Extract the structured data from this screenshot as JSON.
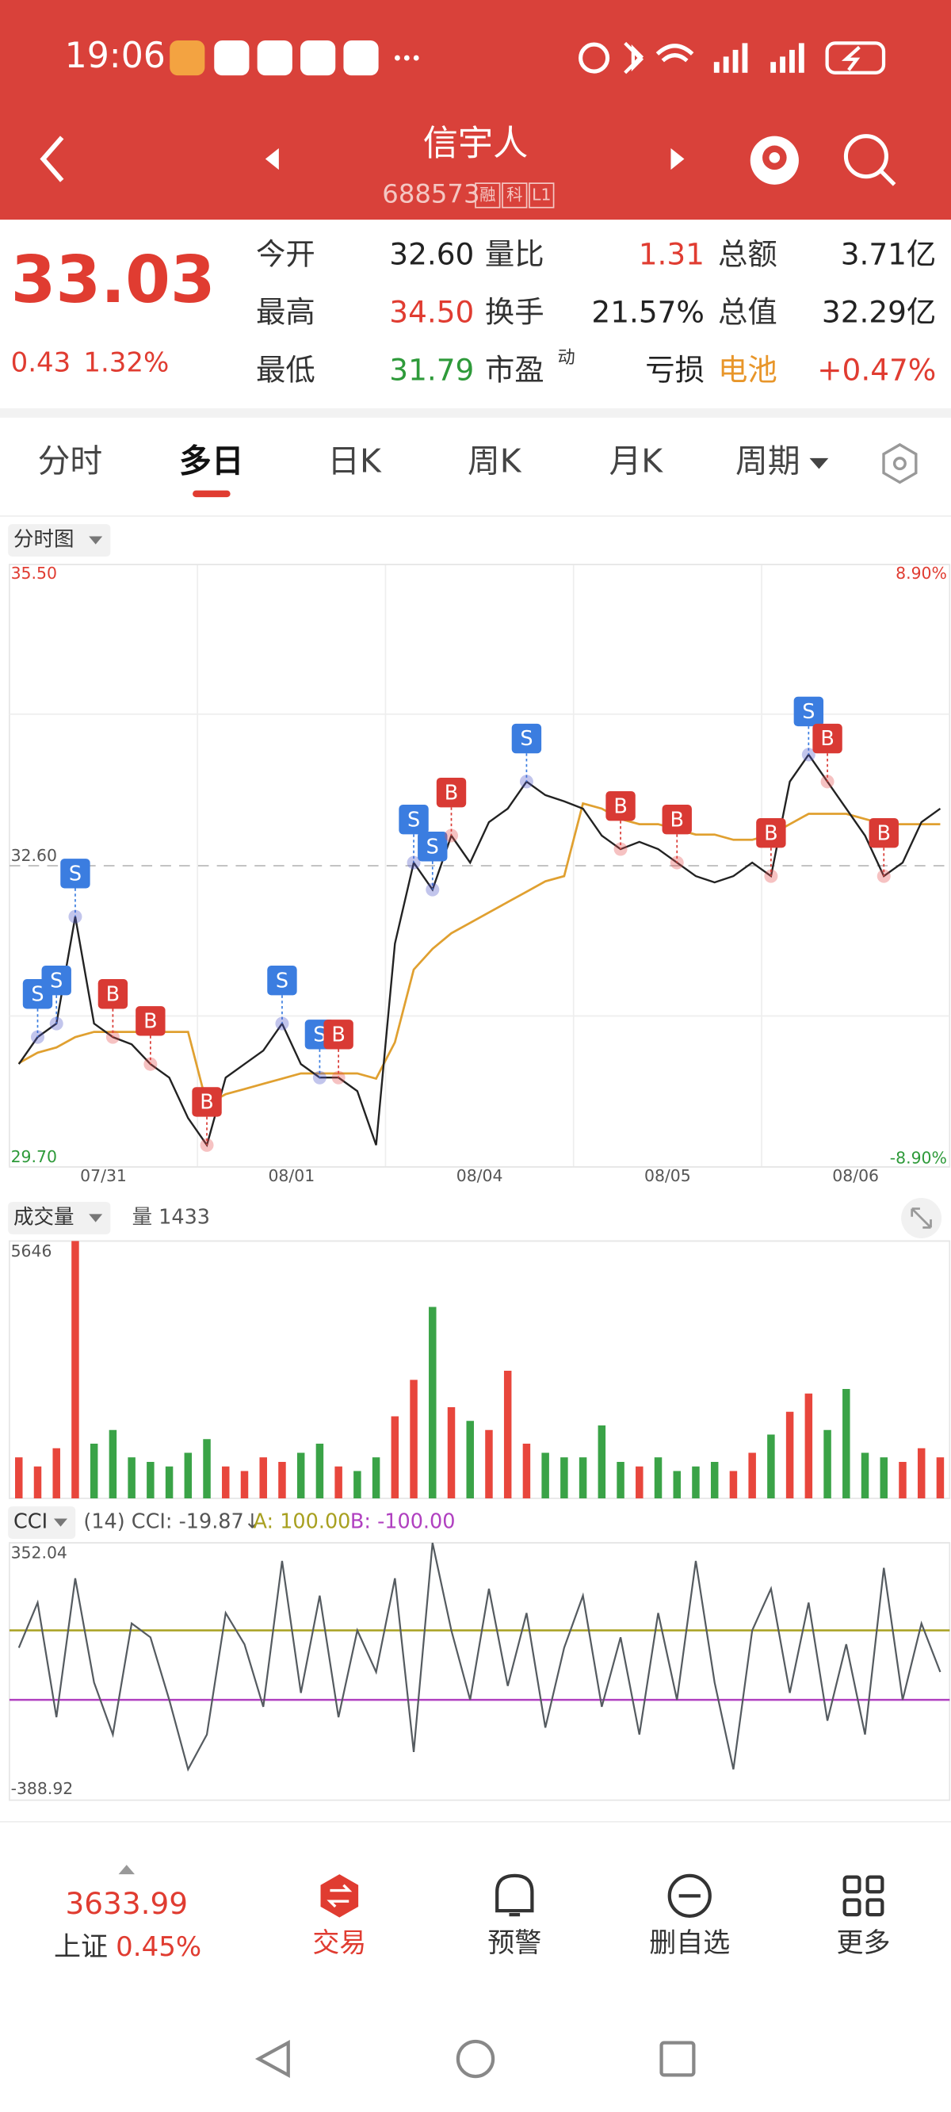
{
  "status_bar": {
    "time": "19:06"
  },
  "header": {
    "title": "信宇人",
    "code": "688573",
    "badges": [
      "融",
      "科",
      "L1"
    ]
  },
  "quote": {
    "price": "33.03",
    "change": "0.43",
    "change_pct": "1.32%",
    "rows": [
      [
        {
          "label": "今开",
          "value": "32.60",
          "color": "#222222"
        },
        {
          "label": "量比",
          "value": "1.31",
          "color": "#e03c31"
        },
        {
          "label": "总额",
          "value": "3.71亿",
          "color": "#222222"
        }
      ],
      [
        {
          "label": "最高",
          "value": "34.50",
          "color": "#e03c31"
        },
        {
          "label": "换手",
          "value": "21.57%",
          "color": "#222222"
        },
        {
          "label": "总值",
          "value": "32.29亿",
          "color": "#222222"
        }
      ],
      [
        {
          "label": "最低",
          "value": "31.79",
          "color": "#2e9a3a"
        },
        {
          "label": "市盈",
          "sup": "动",
          "value": "亏损",
          "color": "#222222"
        },
        {
          "label": "电池",
          "label_color": "#e8962a",
          "value": "+0.47%",
          "color": "#e03c31"
        }
      ]
    ]
  },
  "tabs": [
    "分时",
    "多日",
    "日K",
    "周K",
    "月K",
    "周期"
  ],
  "active_tab": 1,
  "chart_data": [
    {
      "type": "line",
      "label": "分时图",
      "days": [
        "07/31",
        "08/01",
        "08/04",
        "08/05",
        "08/06"
      ],
      "ylim": [
        29.7,
        35.5
      ],
      "yticks": [
        {
          "value": 35.5,
          "label": "35.50"
        },
        {
          "value": 32.6,
          "label": "32.60"
        },
        {
          "value": 29.7,
          "label": "29.70"
        }
      ],
      "pct_labels": [
        "8.90%",
        "-8.90%"
      ],
      "series": [
        {
          "color": "#222222",
          "values": [
            30.69,
            30.95,
            31.08,
            32.11,
            31.08,
            30.95,
            30.88,
            30.69,
            30.56,
            30.17,
            29.91,
            30.56,
            30.69,
            30.82,
            31.08,
            30.69,
            30.56,
            30.56,
            30.43,
            29.91,
            31.85,
            32.63,
            32.37,
            32.89,
            32.63,
            33.02,
            33.15,
            33.41,
            33.28,
            33.22,
            33.15,
            32.89,
            32.76,
            32.83,
            32.76,
            32.63,
            32.5,
            32.44,
            32.5,
            32.63,
            32.5,
            33.41,
            33.67,
            33.41,
            33.15,
            32.89,
            32.5,
            32.63,
            33.02,
            33.15
          ]
        },
        {
          "color": "#e0a030",
          "values": [
            30.7,
            30.8,
            30.85,
            30.95,
            31.0,
            31.0,
            31.0,
            31.0,
            31.0,
            31.0,
            30.3,
            30.4,
            30.45,
            30.5,
            30.55,
            30.6,
            30.6,
            30.6,
            30.6,
            30.55,
            30.9,
            31.6,
            31.8,
            31.95,
            32.05,
            32.15,
            32.25,
            32.35,
            32.45,
            32.5,
            33.2,
            33.15,
            33.05,
            33.0,
            33.0,
            32.95,
            32.9,
            32.9,
            32.85,
            32.85,
            32.9,
            33.0,
            33.1,
            33.1,
            33.1,
            33.05,
            33.0,
            33.0,
            33.0,
            33.0
          ]
        }
      ],
      "markers": [
        {
          "label": "S",
          "at": 1,
          "price": 30.95
        },
        {
          "label": "S",
          "at": 2,
          "price": 31.08
        },
        {
          "label": "S",
          "at": 3,
          "price": 32.11
        },
        {
          "label": "B",
          "at": 5,
          "price": 30.95
        },
        {
          "label": "B",
          "at": 7,
          "price": 30.69
        },
        {
          "label": "B",
          "at": 10,
          "price": 29.91
        },
        {
          "label": "S",
          "at": 14,
          "price": 31.08
        },
        {
          "label": "S",
          "at": 16,
          "price": 30.56
        },
        {
          "label": "B",
          "at": 17,
          "price": 30.56
        },
        {
          "label": "S",
          "at": 21,
          "price": 32.63
        },
        {
          "label": "S",
          "at": 22,
          "price": 32.37
        },
        {
          "label": "B",
          "at": 23,
          "price": 32.89
        },
        {
          "label": "S",
          "at": 27,
          "price": 33.41
        },
        {
          "label": "B",
          "at": 32,
          "price": 32.76
        },
        {
          "label": "B",
          "at": 35,
          "price": 32.63
        },
        {
          "label": "B",
          "at": 40,
          "price": 32.5
        },
        {
          "label": "S",
          "at": 42,
          "price": 33.67
        },
        {
          "label": "B",
          "at": 43,
          "price": 33.41
        },
        {
          "label": "B",
          "at": 46,
          "price": 32.5
        }
      ]
    },
    {
      "type": "bar",
      "label": "成交量",
      "readout": "量 1433",
      "ylim": [
        0,
        5646
      ],
      "yticks": [
        5646
      ],
      "values": [
        900,
        700,
        1100,
        5646,
        1200,
        1500,
        900,
        800,
        700,
        1000,
        1300,
        700,
        600,
        900,
        800,
        1000,
        1200,
        700,
        600,
        900,
        1800,
        2600,
        4200,
        2000,
        1700,
        1500,
        2800,
        1200,
        1000,
        900,
        900,
        1600,
        800,
        700,
        900,
        600,
        700,
        800,
        600,
        1000,
        1400,
        1900,
        2300,
        1500,
        2400,
        1000,
        900,
        800,
        1100,
        900
      ]
    },
    {
      "type": "line",
      "label": "CCI",
      "readout": "(14) CCI: -19.87↓",
      "bands": [
        {
          "label": "A: 100.00",
          "value": 100,
          "color": "#a8a020"
        },
        {
          "label": "B: -100.00",
          "value": -100,
          "color": "#b040c0"
        }
      ],
      "ylim": [
        -388.92,
        352.04
      ],
      "yticks": [
        352.04,
        -388.92
      ],
      "color": "#555b60",
      "values": [
        50,
        180,
        -150,
        250,
        -50,
        -200,
        120,
        80,
        -100,
        -300,
        -200,
        150,
        60,
        -120,
        300,
        -80,
        200,
        -150,
        100,
        -20,
        250,
        -250,
        352,
        100,
        -100,
        220,
        -60,
        150,
        -180,
        50,
        200,
        -120,
        80,
        -200,
        150,
        -100,
        300,
        -50,
        -300,
        100,
        220,
        -80,
        180,
        -160,
        60,
        -200,
        280,
        -100,
        120,
        -19.87
      ]
    }
  ],
  "bottom_nav": {
    "index_value": "3633.99",
    "index_name": "上证",
    "index_change": "0.45%",
    "items": [
      "交易",
      "预警",
      "删自选",
      "更多"
    ]
  }
}
